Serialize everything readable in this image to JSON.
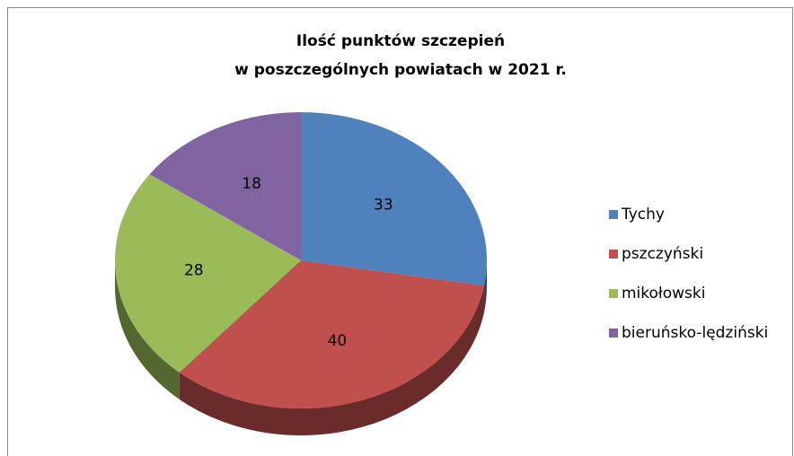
{
  "chart_data": {
    "type": "pie",
    "title": [
      "Ilość punktów szczepień",
      "w poszczególnych powiatach w 2021 r."
    ],
    "categories": [
      "Tychy",
      "pszczyński",
      "mikołowski",
      "bieruńsko-lędziński"
    ],
    "values": [
      33,
      40,
      28,
      18
    ],
    "colors": [
      "#4f81bd",
      "#c0504d",
      "#9bbb59",
      "#8064a2"
    ],
    "legend": "right"
  }
}
